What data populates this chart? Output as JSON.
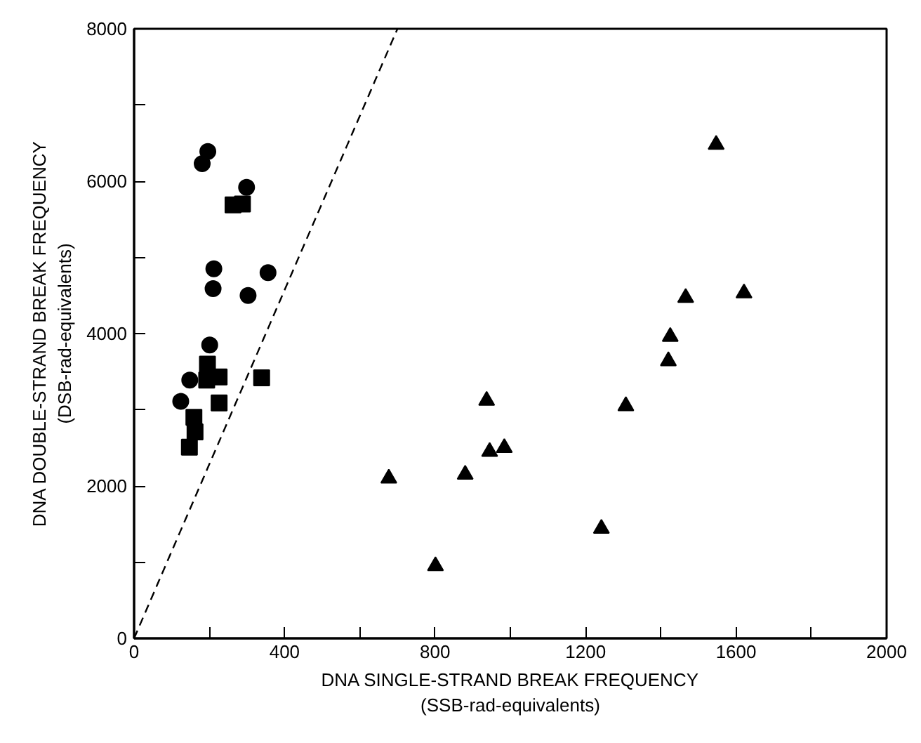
{
  "chart_data": {
    "type": "scatter",
    "xlabel": "DNA SINGLE-STRAND BREAK FREQUENCY\n(SSB-rad-equivalents)",
    "ylabel": "DNA DOUBLE-STRAND BREAK FREQUENCY\n(DSB-rad-equivalents)",
    "xlim": [
      0,
      2000
    ],
    "ylim": [
      0,
      8000
    ],
    "xticks": [
      0,
      {
        "value": 200,
        "label": null
      },
      400,
      {
        "value": 600,
        "label": null
      },
      800,
      {
        "value": 1000,
        "label": null
      },
      1200,
      {
        "value": 1400,
        "label": null
      },
      1600,
      {
        "value": 1800,
        "label": null
      },
      2000
    ],
    "yticks": [
      0,
      {
        "value": 1000,
        "label": null
      },
      2000,
      {
        "value": 3000,
        "label": null
      },
      4000,
      {
        "value": 5000,
        "label": null
      },
      6000,
      {
        "value": 7000,
        "label": null
      },
      8000
    ],
    "grid": false,
    "series": [
      {
        "color": "#000000",
        "marker": "circle",
        "x": [
          124,
          148,
          181,
          196,
          201,
          210,
          212,
          299,
          303,
          356
        ],
        "values": [
          3110,
          3390,
          6230,
          6390,
          3850,
          4590,
          4850,
          5920,
          4500,
          4800
        ]
      },
      {
        "color": "#000000",
        "marker": "square",
        "x": [
          147,
          162,
          159,
          195,
          193,
          226,
          226,
          263,
          288,
          339
        ],
        "values": [
          2510,
          2710,
          2900,
          3600,
          3390,
          3430,
          3090,
          5690,
          5700,
          3420
        ]
      },
      {
        "color": "#000000",
        "marker": "triangle",
        "x": [
          677,
          801,
          880,
          937,
          945,
          984,
          1242,
          1307,
          1420,
          1425,
          1466,
          1547,
          1621
        ],
        "values": [
          2100,
          950,
          2150,
          3120,
          2450,
          2500,
          1440,
          3050,
          3640,
          3960,
          4470,
          6480,
          4530
        ]
      },
      {
        "type": "line",
        "color": "#000000",
        "line_style": "dashed",
        "marker": "none",
        "x": [
          0,
          700
        ],
        "values": [
          0,
          8000
        ]
      }
    ]
  }
}
